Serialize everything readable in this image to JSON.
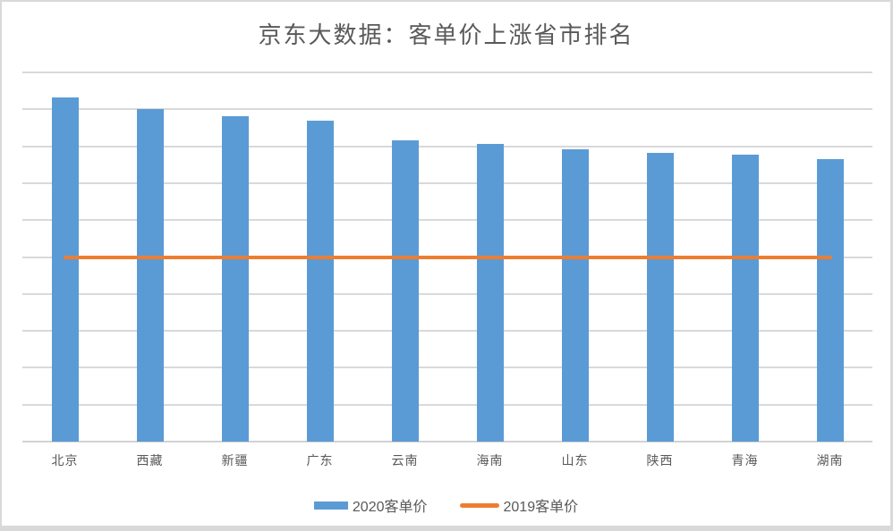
{
  "title": "京东大数据：客单价上涨省市排名",
  "colors": {
    "bar_2020": "#5b9bd5",
    "line_2019": "#ed7d31",
    "gridline": "#d9d9d9",
    "axis_line": "#d2d2d2",
    "text": "#595959",
    "frame_border": "#d9d9d9",
    "background": "#ffffff"
  },
  "legend": {
    "items": [
      {
        "label": "2020客单价",
        "swatch": "bar",
        "color": "#5b9bd5"
      },
      {
        "label": "2019客单价",
        "swatch": "line",
        "color": "#ed7d31"
      }
    ]
  },
  "chart_data": {
    "type": "bar",
    "title": "京东大数据：客单价上涨省市排名",
    "categories": [
      "北京",
      "西藏",
      "新疆",
      "广东",
      "云南",
      "海南",
      "山东",
      "陕西",
      "青海",
      "湖南"
    ],
    "series": [
      {
        "name": "2020客单价",
        "type": "bar",
        "color": "#5b9bd5",
        "values": [
          93.3,
          90.0,
          88.2,
          87.0,
          81.6,
          80.7,
          79.2,
          78.2,
          77.7,
          76.6
        ]
      },
      {
        "name": "2019客单价",
        "type": "line",
        "color": "#ed7d31",
        "values": [
          50,
          50,
          50,
          50,
          50,
          50,
          50,
          50,
          50,
          50
        ]
      }
    ],
    "xlabel": "",
    "ylabel": "",
    "ylim": [
      0,
      100
    ],
    "gridline_step": 10,
    "y_tick_labels_visible": false,
    "grid": true,
    "legend_position": "bottom"
  }
}
